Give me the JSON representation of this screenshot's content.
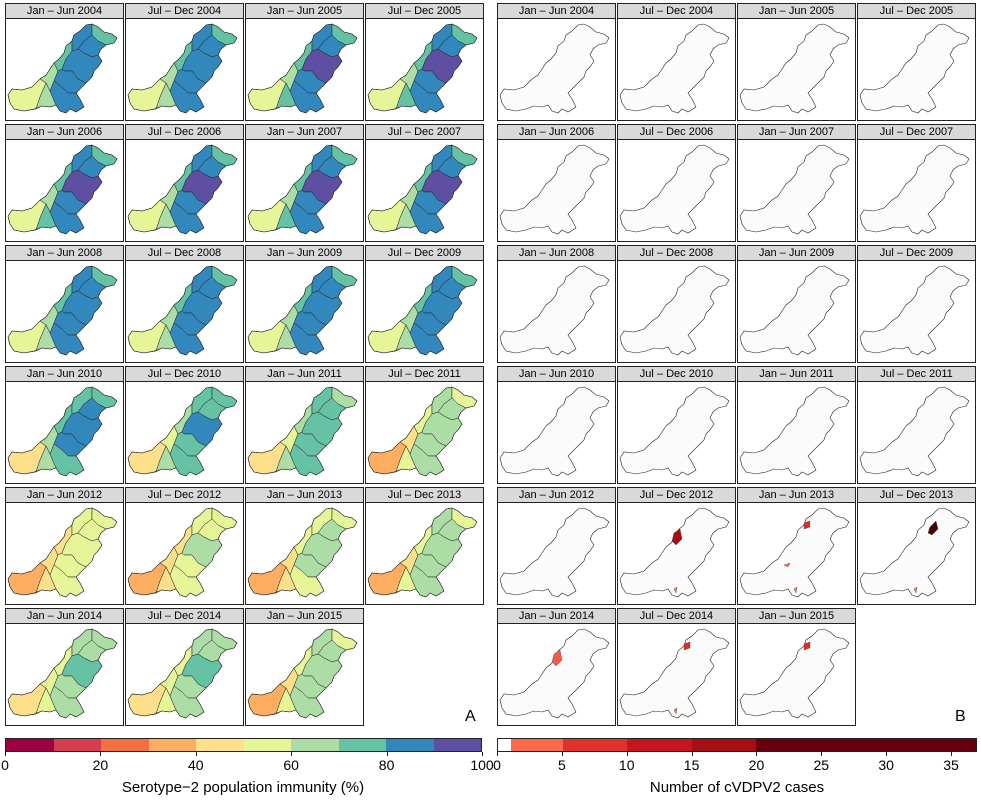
{
  "panel_a": {
    "letter": "A",
    "facets": [
      {
        "title": "Jan – Jun 2004",
        "mix": 0.82
      },
      {
        "title": "Jul – Dec 2004",
        "mix": 0.82
      },
      {
        "title": "Jan – Jun 2005",
        "mix": 0.85
      },
      {
        "title": "Jul – Dec 2005",
        "mix": 0.86
      },
      {
        "title": "Jan – Jun 2006",
        "mix": 0.85
      },
      {
        "title": "Jul – Dec 2006",
        "mix": 0.84
      },
      {
        "title": "Jan – Jun 2007",
        "mix": 0.86
      },
      {
        "title": "Jul – Dec 2007",
        "mix": 0.84
      },
      {
        "title": "Jan – Jun 2008",
        "mix": 0.82
      },
      {
        "title": "Jul – Dec 2008",
        "mix": 0.83
      },
      {
        "title": "Jan – Jun 2009",
        "mix": 0.83
      },
      {
        "title": "Jul – Dec 2009",
        "mix": 0.82
      },
      {
        "title": "Jan – Jun 2010",
        "mix": 0.8
      },
      {
        "title": "Jul – Dec 2010",
        "mix": 0.76
      },
      {
        "title": "Jan – Jun 2011",
        "mix": 0.72
      },
      {
        "title": "Jul – Dec 2011",
        "mix": 0.6
      },
      {
        "title": "Jan – Jun 2012",
        "mix": 0.52
      },
      {
        "title": "Jul – Dec 2012",
        "mix": 0.55
      },
      {
        "title": "Jan – Jun 2013",
        "mix": 0.58
      },
      {
        "title": "Jul – Dec 2013",
        "mix": 0.62
      },
      {
        "title": "Jan – Jun 2014",
        "mix": 0.66
      },
      {
        "title": "Jul – Dec 2014",
        "mix": 0.65
      },
      {
        "title": "Jan – Jun 2015",
        "mix": 0.6
      }
    ],
    "legend": {
      "title": "Serotype−2 population immunity (%)",
      "ticks": [
        "0",
        "20",
        "40",
        "60",
        "80",
        "100"
      ],
      "colors": [
        "#9e0142",
        "#d53e4f",
        "#f46d43",
        "#fdae61",
        "#fee08b",
        "#e6f598",
        "#abdda4",
        "#66c2a5",
        "#3288bd",
        "#5e4fa2"
      ]
    }
  },
  "panel_b": {
    "letter": "B",
    "facets": [
      {
        "title": "Jan – Jun 2004",
        "cases": []
      },
      {
        "title": "Jul – Dec 2004",
        "cases": []
      },
      {
        "title": "Jan – Jun 2005",
        "cases": []
      },
      {
        "title": "Jul – Dec 2005",
        "cases": []
      },
      {
        "title": "Jan – Jun 2006",
        "cases": []
      },
      {
        "title": "Jul – Dec 2006",
        "cases": []
      },
      {
        "title": "Jan – Jun 2007",
        "cases": []
      },
      {
        "title": "Jul – Dec 2007",
        "cases": []
      },
      {
        "title": "Jan – Jun 2008",
        "cases": []
      },
      {
        "title": "Jul – Dec 2008",
        "cases": []
      },
      {
        "title": "Jan – Jun 2009",
        "cases": []
      },
      {
        "title": "Jul – Dec 2009",
        "cases": []
      },
      {
        "title": "Jan – Jun 2010",
        "cases": []
      },
      {
        "title": "Jul – Dec 2010",
        "cases": []
      },
      {
        "title": "Jan – Jun 2011",
        "cases": []
      },
      {
        "title": "Jul – Dec 2011",
        "cases": []
      },
      {
        "title": "Jan – Jun 2012",
        "cases": []
      },
      {
        "title": "Jul – Dec 2012",
        "cases": [
          {
            "region": "north-west",
            "color": "#a50f15"
          },
          {
            "region": "south",
            "color": "#fb6a4a"
          }
        ]
      },
      {
        "title": "Jan – Jun 2013",
        "cases": [
          {
            "region": "north",
            "color": "#de2d26"
          },
          {
            "region": "centre",
            "color": "#fb6a4a"
          },
          {
            "region": "south",
            "color": "#fb6a4a"
          }
        ]
      },
      {
        "title": "Jul – Dec 2013",
        "cases": [
          {
            "region": "north-east",
            "color": "#4a0008"
          },
          {
            "region": "south",
            "color": "#fb6a4a"
          }
        ]
      },
      {
        "title": "Jan – Jun 2014",
        "cases": [
          {
            "region": "north-west",
            "color": "#ef5a4a"
          }
        ]
      },
      {
        "title": "Jul – Dec 2014",
        "cases": [
          {
            "region": "north",
            "color": "#de2d26"
          },
          {
            "region": "south",
            "color": "#fb6a4a"
          }
        ]
      },
      {
        "title": "Jan – Jun 2015",
        "cases": [
          {
            "region": "north",
            "color": "#de2d26"
          }
        ]
      }
    ],
    "legend": {
      "title": "Number of cVDPV2 cases",
      "ticks": [
        "0",
        "5",
        "10",
        "15",
        "20",
        "25",
        "30",
        "35"
      ],
      "max": 37,
      "bins": [
        {
          "from": 0,
          "to": 1,
          "color": "#ffffff"
        },
        {
          "from": 1,
          "to": 5,
          "color": "#fb6a4a"
        },
        {
          "from": 5,
          "to": 10,
          "color": "#e0322c"
        },
        {
          "from": 10,
          "to": 15,
          "color": "#c4161c"
        },
        {
          "from": 15,
          "to": 20,
          "color": "#a50f15"
        },
        {
          "from": 20,
          "to": 37,
          "color": "#67000d"
        }
      ]
    }
  }
}
